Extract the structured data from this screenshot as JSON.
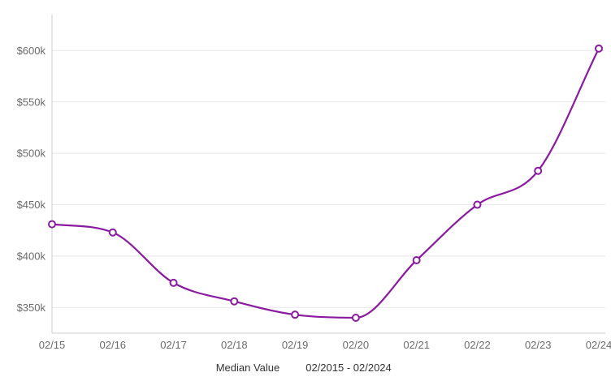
{
  "chart_data": {
    "type": "line",
    "categories": [
      "02/15",
      "02/16",
      "02/17",
      "02/18",
      "02/19",
      "02/20",
      "02/21",
      "02/22",
      "02/23",
      "02/24"
    ],
    "series": [
      {
        "name": "Median Value",
        "values": [
          431000,
          423000,
          374000,
          356000,
          343000,
          340000,
          396000,
          450000,
          483000,
          602000
        ]
      }
    ],
    "y_ticks": [
      350000,
      400000,
      450000,
      500000,
      550000,
      600000
    ],
    "y_tick_labels": [
      "$350k",
      "$400k",
      "$450k",
      "$500k",
      "$550k",
      "$600k"
    ],
    "ylim": [
      325000,
      635000
    ],
    "date_range": "02/2015 - 02/2024",
    "grid": "horizontal",
    "legend_position": "bottom-center",
    "colors": {
      "line": "#8a1aa0",
      "grid": "#e8e8e8",
      "axis": "#cccccc",
      "text": "#6b6b6b"
    }
  }
}
